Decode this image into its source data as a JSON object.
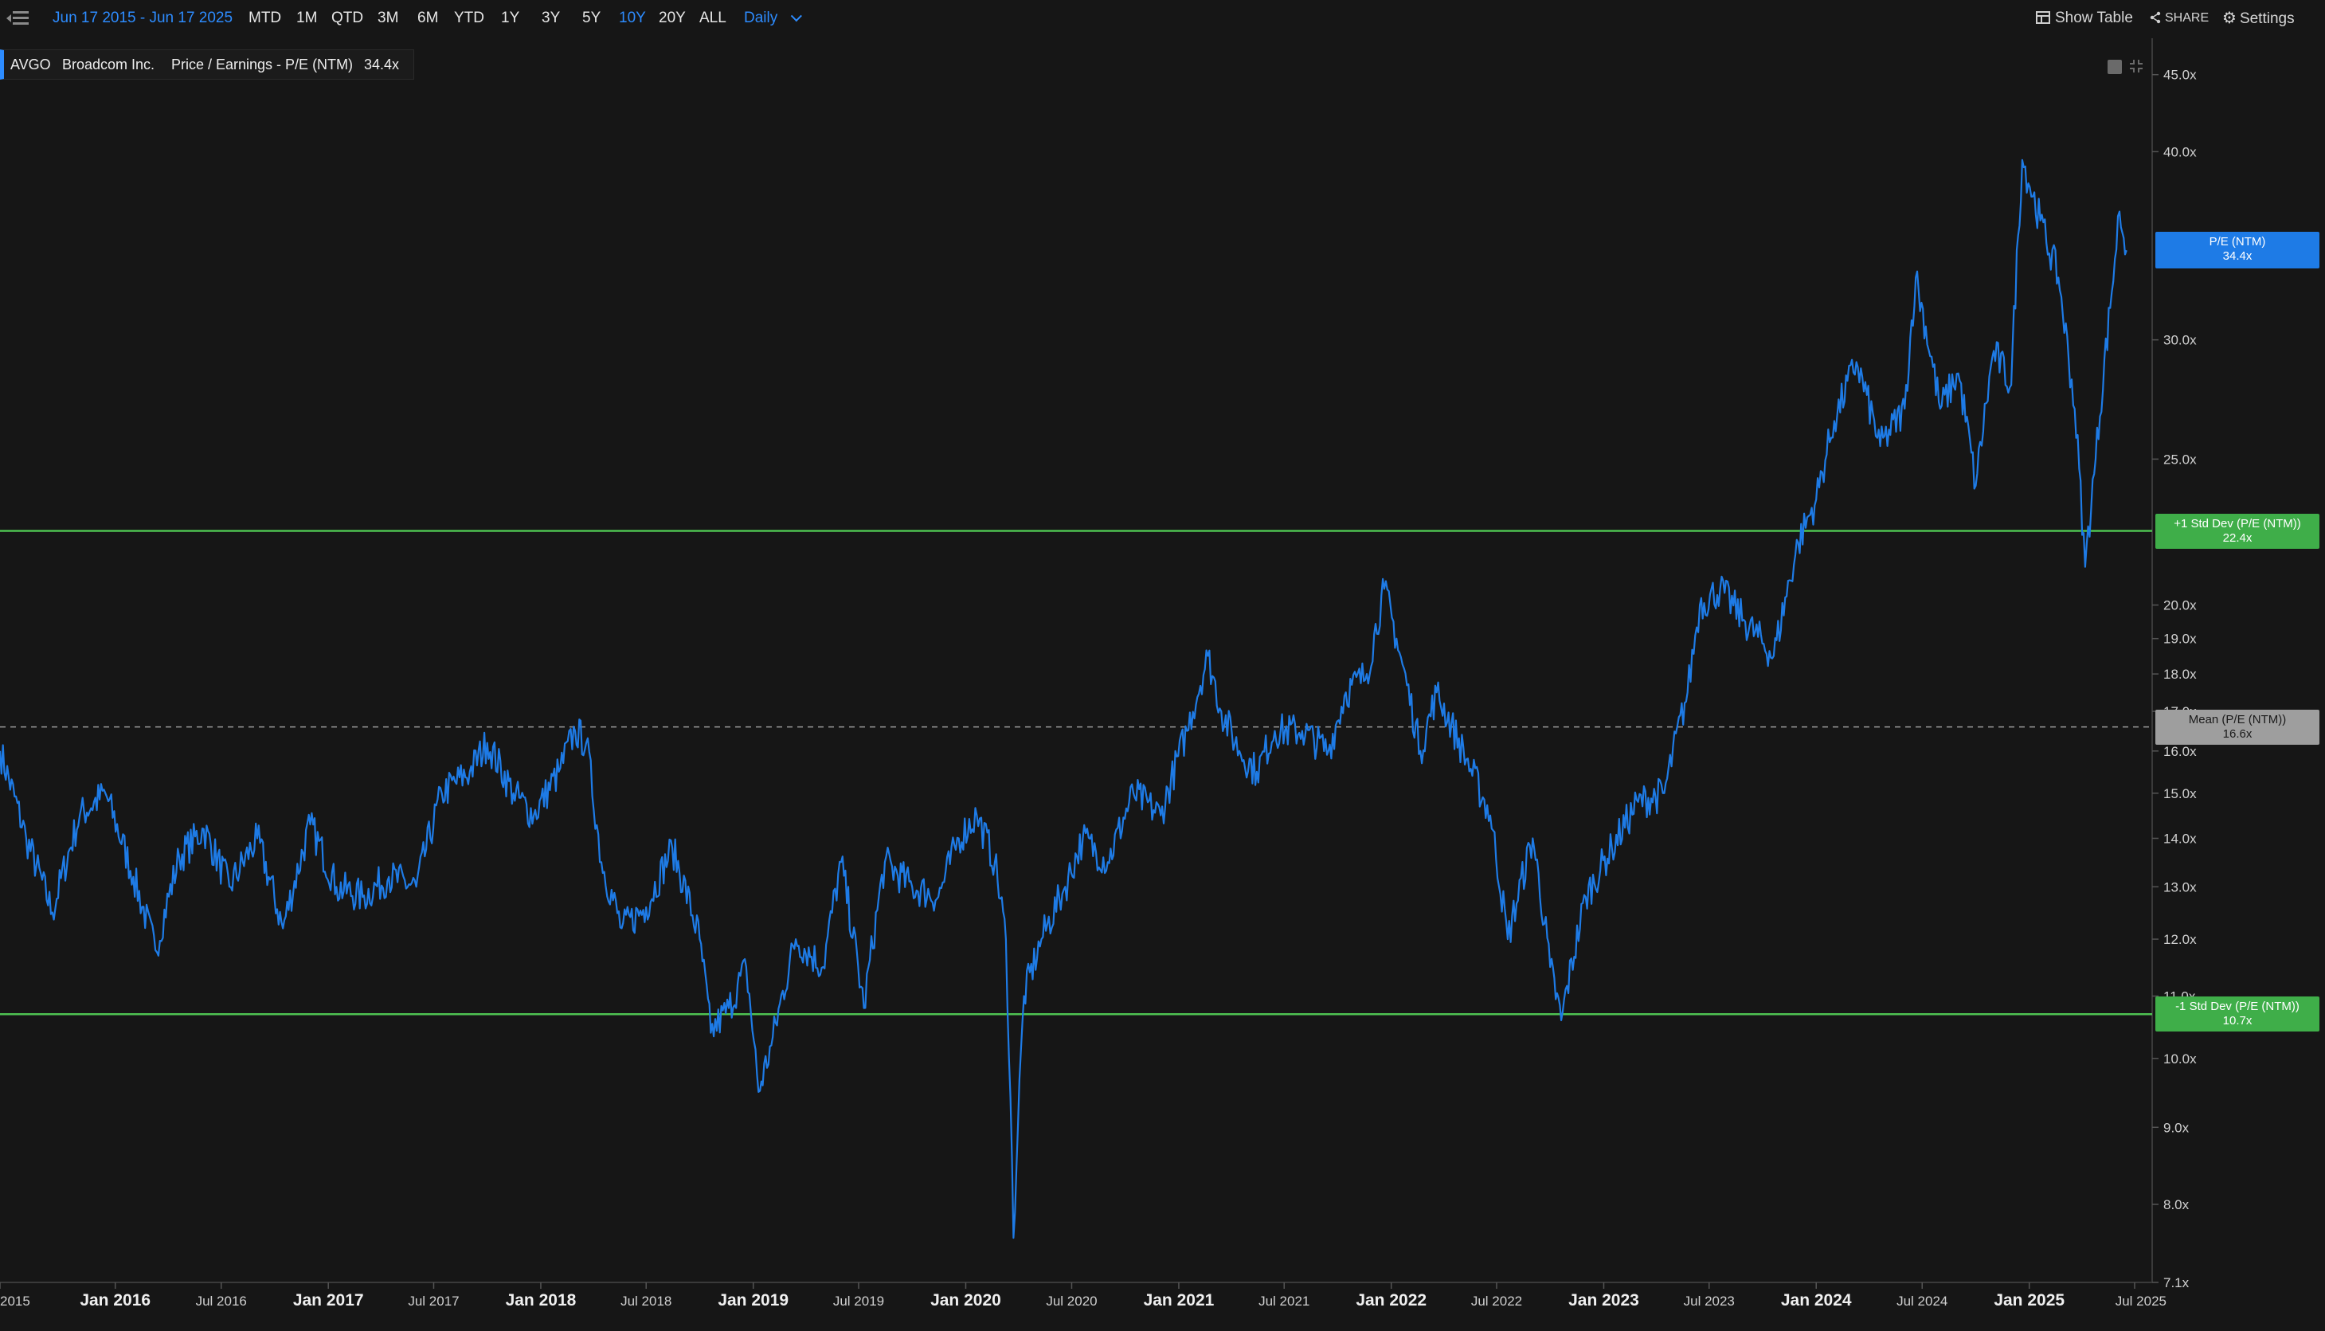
{
  "toolbar": {
    "date_range": "Jun 17 2015 - Jun 17 2025",
    "periods": [
      "MTD",
      "1M",
      "QTD",
      "3M",
      "6M",
      "YTD",
      "1Y",
      "3Y",
      "5Y",
      "10Y",
      "20Y",
      "ALL"
    ],
    "active_period": "10Y",
    "interval": "Daily",
    "show_table": "Show Table",
    "share": "SHARE",
    "settings": "Settings"
  },
  "legend": {
    "ticker": "AVGO",
    "company": "Broadcom Inc.",
    "metric": "Price / Earnings - P/E (NTM)",
    "value": "34.4x"
  },
  "tags": {
    "pe": {
      "label": "P/E (NTM)",
      "value": "34.4x",
      "color": "#1e7be6"
    },
    "plus1": {
      "label": "+1 Std Dev (P/E (NTM))",
      "value": "22.4x",
      "color": "#3fae49"
    },
    "mean": {
      "label": "Mean (P/E (NTM))",
      "value": "16.6x",
      "color": "#9e9e9e"
    },
    "minus1": {
      "label": "-1 Std Dev (P/E (NTM))",
      "value": "10.7x",
      "color": "#3fae49"
    }
  },
  "chart_data": {
    "type": "line",
    "series": [
      {
        "name": "P/E (NTM)",
        "color": "#1e7be6",
        "points": [
          [
            "2015-06-17",
            16.0
          ],
          [
            "2015-08-01",
            14.0
          ],
          [
            "2015-09-15",
            12.5
          ],
          [
            "2015-11-01",
            14.5
          ],
          [
            "2015-12-15",
            15.0
          ],
          [
            "2016-02-01",
            13.2
          ],
          [
            "2016-03-10",
            11.8
          ],
          [
            "2016-04-20",
            13.6
          ],
          [
            "2016-06-01",
            14.2
          ],
          [
            "2016-07-15",
            13.0
          ],
          [
            "2016-09-01",
            14.0
          ],
          [
            "2016-10-15",
            12.2
          ],
          [
            "2016-12-01",
            14.3
          ],
          [
            "2017-01-15",
            13.0
          ],
          [
            "2017-03-01",
            12.8
          ],
          [
            "2017-04-15",
            13.2
          ],
          [
            "2017-06-01",
            13.0
          ],
          [
            "2017-07-15",
            15.0
          ],
          [
            "2017-09-01",
            15.5
          ],
          [
            "2017-10-01",
            16.2
          ],
          [
            "2017-11-15",
            15.0
          ],
          [
            "2017-12-20",
            14.5
          ],
          [
            "2018-02-01",
            15.5
          ],
          [
            "2018-03-01",
            16.5
          ],
          [
            "2018-03-20",
            16.2
          ],
          [
            "2018-04-15",
            13.5
          ],
          [
            "2018-05-20",
            12.2
          ],
          [
            "2018-07-01",
            12.6
          ],
          [
            "2018-08-15",
            13.8
          ],
          [
            "2018-10-01",
            12.0
          ],
          [
            "2018-10-20",
            10.4
          ],
          [
            "2018-11-20",
            10.8
          ],
          [
            "2018-12-20",
            11.5
          ],
          [
            "2019-01-10",
            9.5
          ],
          [
            "2019-02-01",
            10.2
          ],
          [
            "2019-03-15",
            12.0
          ],
          [
            "2019-05-01",
            11.5
          ],
          [
            "2019-06-01",
            13.5
          ],
          [
            "2019-07-10",
            10.8
          ],
          [
            "2019-08-15",
            13.5
          ],
          [
            "2019-10-01",
            13.0
          ],
          [
            "2019-11-15",
            12.8
          ],
          [
            "2019-12-20",
            14.0
          ],
          [
            "2020-01-20",
            14.5
          ],
          [
            "2020-02-20",
            13.5
          ],
          [
            "2020-03-10",
            12.0
          ],
          [
            "2020-03-23",
            7.6
          ],
          [
            "2020-04-10",
            11.0
          ],
          [
            "2020-05-10",
            12.0
          ],
          [
            "2020-06-20",
            13.0
          ],
          [
            "2020-07-20",
            14.0
          ],
          [
            "2020-09-01",
            13.5
          ],
          [
            "2020-10-15",
            15.0
          ],
          [
            "2020-12-01",
            14.5
          ],
          [
            "2021-01-15",
            16.5
          ],
          [
            "2021-02-20",
            18.5
          ],
          [
            "2021-03-15",
            17.0
          ],
          [
            "2021-04-15",
            16.0
          ],
          [
            "2021-05-15",
            15.5
          ],
          [
            "2021-06-15",
            16.5
          ],
          [
            "2021-08-01",
            16.5
          ],
          [
            "2021-09-15",
            16.0
          ],
          [
            "2021-10-15",
            17.5
          ],
          [
            "2021-11-20",
            18.0
          ],
          [
            "2021-12-20",
            20.5
          ],
          [
            "2022-01-10",
            19.0
          ],
          [
            "2022-02-20",
            16.0
          ],
          [
            "2022-03-20",
            17.5
          ],
          [
            "2022-05-10",
            15.8
          ],
          [
            "2022-06-20",
            14.5
          ],
          [
            "2022-07-20",
            12.0
          ],
          [
            "2022-09-01",
            14.0
          ],
          [
            "2022-10-01",
            11.5
          ],
          [
            "2022-10-20",
            10.6
          ],
          [
            "2022-12-01",
            12.8
          ],
          [
            "2023-01-15",
            13.8
          ],
          [
            "2023-03-01",
            14.8
          ],
          [
            "2023-04-15",
            15.0
          ],
          [
            "2023-05-25",
            17.5
          ],
          [
            "2023-06-15",
            20.0
          ],
          [
            "2023-07-20",
            20.5
          ],
          [
            "2023-09-01",
            19.5
          ],
          [
            "2023-10-20",
            18.5
          ],
          [
            "2023-12-01",
            22.0
          ],
          [
            "2024-01-01",
            23.5
          ],
          [
            "2024-02-01",
            26.5
          ],
          [
            "2024-03-10",
            29.0
          ],
          [
            "2024-04-20",
            25.5
          ],
          [
            "2024-06-01",
            27.0
          ],
          [
            "2024-06-20",
            33.0
          ],
          [
            "2024-08-01",
            27.0
          ],
          [
            "2024-09-01",
            28.5
          ],
          [
            "2024-10-01",
            24.0
          ],
          [
            "2024-11-01",
            29.5
          ],
          [
            "2024-12-01",
            28.0
          ],
          [
            "2024-12-20",
            39.5
          ],
          [
            "2025-01-20",
            36.0
          ],
          [
            "2025-02-20",
            33.0
          ],
          [
            "2025-03-20",
            27.0
          ],
          [
            "2025-04-07",
            21.2
          ],
          [
            "2025-04-25",
            25.0
          ],
          [
            "2025-05-20",
            31.5
          ],
          [
            "2025-06-05",
            36.5
          ],
          [
            "2025-06-17",
            34.4
          ]
        ]
      }
    ],
    "reference_lines": [
      {
        "name": "+1 Std Dev (P/E (NTM))",
        "value": 22.4
      },
      {
        "name": "Mean (P/E (NTM))",
        "value": 16.6
      },
      {
        "name": "-1 Std Dev (P/E (NTM))",
        "value": 10.7
      }
    ],
    "ylim": [
      7.1,
      47
    ],
    "y_scale": "log",
    "y_ticks": [
      45,
      40,
      30,
      25,
      20,
      19,
      18,
      17,
      16,
      15,
      14,
      13,
      12,
      11,
      10,
      9,
      8,
      7.1
    ],
    "y_tick_labels": [
      "45.0x",
      "40.0x",
      "30.0x",
      "25.0x",
      "20.0x",
      "19.0x",
      "18.0x",
      "17.0x",
      "16.0x",
      "15.0x",
      "14.0x",
      "13.0x",
      "12.0x",
      "11.0x",
      "10.0x",
      "9.0x",
      "8.0x",
      "7.1x"
    ],
    "x_ticks": [
      [
        "2015-06-17",
        "2015"
      ],
      [
        "2016-01-01",
        "Jan 2016"
      ],
      [
        "2016-07-01",
        "Jul 2016"
      ],
      [
        "2017-01-01",
        "Jan 2017"
      ],
      [
        "2017-07-01",
        "Jul 2017"
      ],
      [
        "2018-01-01",
        "Jan 2018"
      ],
      [
        "2018-07-01",
        "Jul 2018"
      ],
      [
        "2019-01-01",
        "Jan 2019"
      ],
      [
        "2019-07-01",
        "Jul 2019"
      ],
      [
        "2020-01-01",
        "Jan 2020"
      ],
      [
        "2020-07-01",
        "Jul 2020"
      ],
      [
        "2021-01-01",
        "Jan 2021"
      ],
      [
        "2021-07-01",
        "Jul 2021"
      ],
      [
        "2022-01-01",
        "Jan 2022"
      ],
      [
        "2022-07-01",
        "Jul 2022"
      ],
      [
        "2023-01-01",
        "Jan 2023"
      ],
      [
        "2023-07-01",
        "Jul 2023"
      ],
      [
        "2024-01-01",
        "Jan 2024"
      ],
      [
        "2024-07-01",
        "Jul 2024"
      ],
      [
        "2025-01-01",
        "Jan 2025"
      ],
      [
        "2025-07-01",
        "Jul 2025"
      ]
    ],
    "grid": false
  }
}
